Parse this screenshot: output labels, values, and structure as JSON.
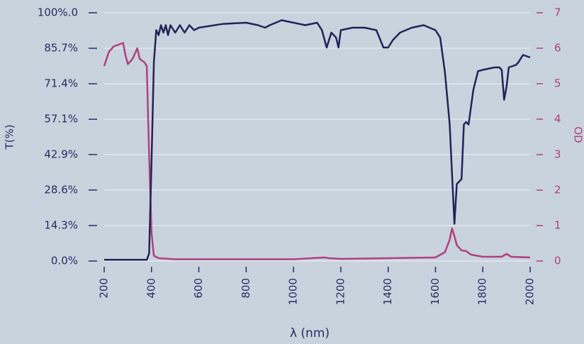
{
  "chart_data": {
    "type": "line",
    "x_label": "λ (nm)",
    "y_label": "T(%)",
    "y2_label": "OD",
    "xlim": [
      200,
      2000
    ],
    "xticks": [
      200,
      400,
      600,
      800,
      1000,
      1200,
      1400,
      1600,
      1800,
      2000
    ],
    "ylim": [
      0,
      100
    ],
    "yticks": [
      {
        "value": 0,
        "label": "0.0%"
      },
      {
        "value": 14.3,
        "label": "14.3%"
      },
      {
        "value": 28.6,
        "label": "28.6%"
      },
      {
        "value": 42.9,
        "label": "42.9%"
      },
      {
        "value": 57.1,
        "label": "57.1%"
      },
      {
        "value": 71.4,
        "label": "71.4%"
      },
      {
        "value": 85.7,
        "label": "85.7%"
      },
      {
        "value": 100,
        "label": "100%.0"
      }
    ],
    "y2lim": [
      0,
      7
    ],
    "y2ticks": [
      0,
      1,
      2,
      3,
      4,
      5,
      6,
      7
    ],
    "grid": true,
    "series": [
      {
        "name": "T",
        "color": "#23235a",
        "x": [
          200,
          380,
          390,
          400,
          410,
          420,
          430,
          440,
          450,
          460,
          470,
          480,
          500,
          520,
          540,
          560,
          580,
          600,
          700,
          800,
          850,
          880,
          900,
          950,
          1000,
          1050,
          1100,
          1120,
          1140,
          1160,
          1180,
          1190,
          1200,
          1250,
          1300,
          1350,
          1380,
          1400,
          1420,
          1450,
          1500,
          1550,
          1600,
          1620,
          1640,
          1660,
          1670,
          1680,
          1690,
          1700,
          1710,
          1720,
          1730,
          1740,
          1750,
          1760,
          1780,
          1800,
          1850,
          1870,
          1880,
          1890,
          1900,
          1910,
          1940,
          1950,
          1970,
          2000
        ],
        "values": [
          0.5,
          0.5,
          3,
          40,
          80,
          93,
          91,
          95,
          92,
          95,
          91,
          95,
          92,
          95,
          92,
          95,
          93,
          94,
          95.5,
          96,
          95,
          94,
          95,
          97,
          96,
          95,
          96,
          93,
          86,
          92,
          90,
          86,
          93,
          94,
          94,
          93,
          86,
          86,
          89,
          92,
          94,
          95,
          93,
          90,
          76,
          55,
          35,
          15,
          31,
          32,
          33,
          55,
          56,
          55,
          62,
          69,
          76.5,
          77,
          78,
          78,
          77,
          65,
          70,
          78,
          79,
          80,
          83,
          82
        ]
      },
      {
        "name": "OD",
        "color": "#b0417f",
        "axis": "y2",
        "x": [
          200,
          220,
          240,
          260,
          280,
          290,
          300,
          320,
          340,
          350,
          370,
          380,
          390,
          400,
          410,
          430,
          500,
          1000,
          1130,
          1150,
          1200,
          1400,
          1600,
          1640,
          1660,
          1670,
          1680,
          1690,
          1710,
          1730,
          1750,
          1800,
          1880,
          1900,
          1920,
          2000
        ],
        "values": [
          5.5,
          5.9,
          6.05,
          6.1,
          6.15,
          5.8,
          5.55,
          5.7,
          6.0,
          5.7,
          5.6,
          5.5,
          3,
          0.8,
          0.15,
          0.08,
          0.05,
          0.05,
          0.1,
          0.08,
          0.06,
          0.08,
          0.1,
          0.25,
          0.6,
          0.92,
          0.7,
          0.45,
          0.3,
          0.28,
          0.18,
          0.12,
          0.12,
          0.2,
          0.12,
          0.1
        ]
      }
    ]
  }
}
